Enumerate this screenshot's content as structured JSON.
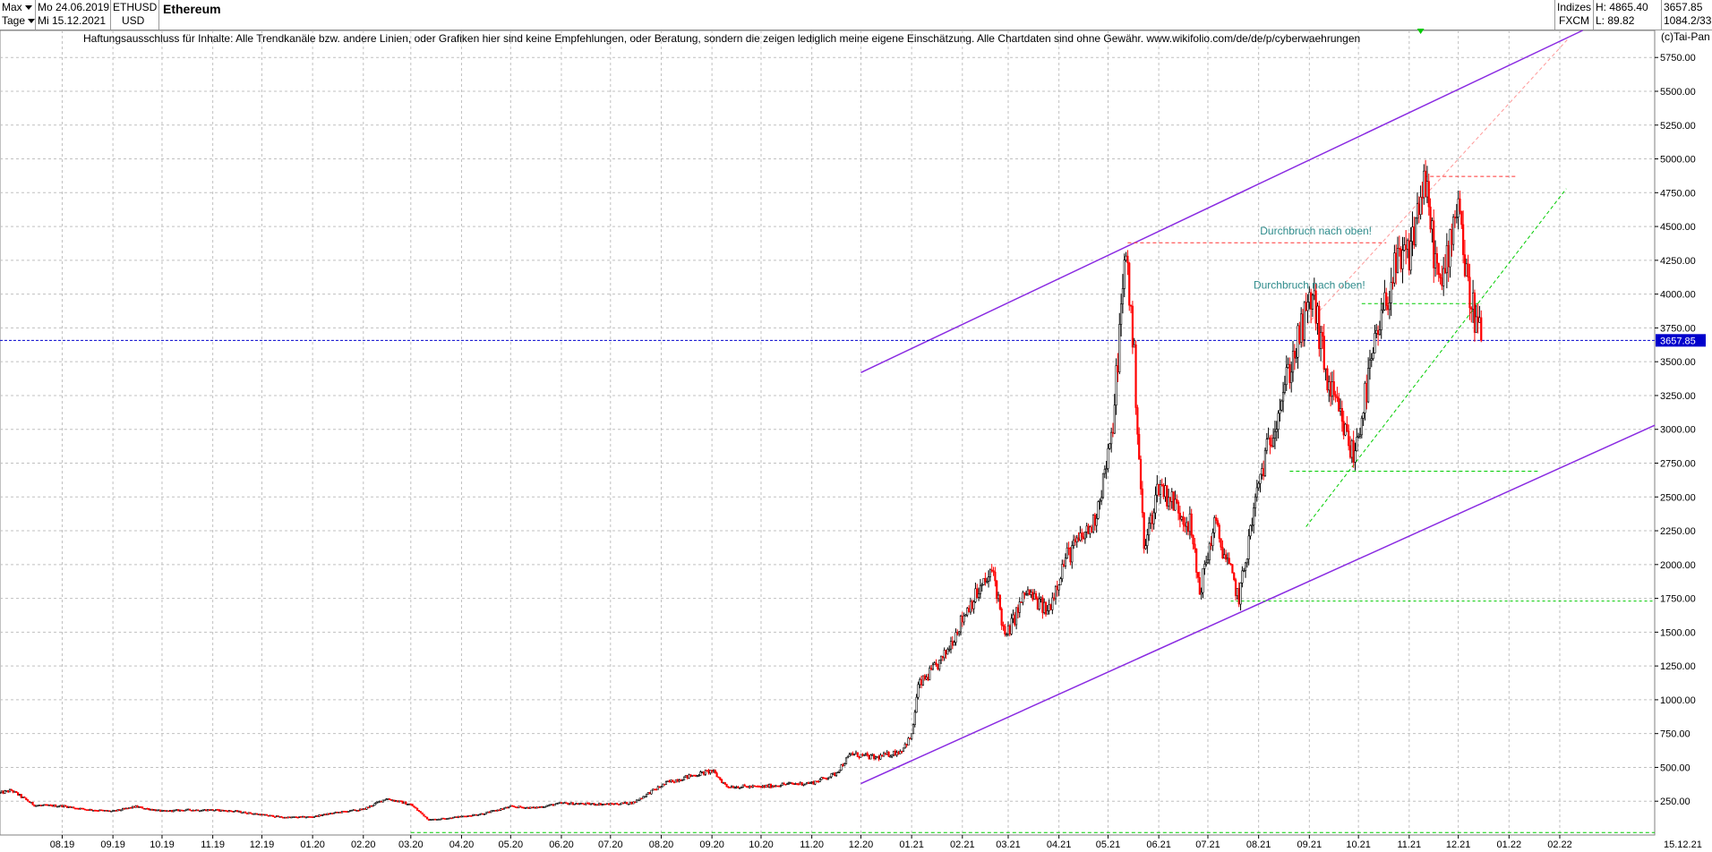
{
  "header": {
    "range_label": "Max",
    "interval_label": "Tage",
    "date_from": "Mo 24.06.2019",
    "date_to": "Mi 15.12.2021",
    "symbol": "ETHUSD",
    "currency": "USD",
    "title": "Ethereum",
    "source_top": "Indizes",
    "source_bottom": "FXCM",
    "high_label": "H: 4865.40",
    "low_label": "L: 89.82",
    "last_price": "3657.85",
    "change": "1084.2/33"
  },
  "disclaimer": "Haftungsausschluss für Inhalte: Alle Trendkanäle bzw. andere Linien, oder Grafiken hier sind keine Empfehlungen, oder Beratung, sondern die zeigen lediglich meine eigene Einschätzung. Alle Chartdaten sind ohne Gewähr.  www.wikifolio.com/de/de/p/cyberwaehrungen",
  "copyright": "(c)Tai-Pan",
  "colors": {
    "up": "#000000",
    "down": "#ff0000",
    "channel": "#8a2be2",
    "support": "#00cc00",
    "resistance": "#ff3333",
    "annotation": "#2e8b8b",
    "price_line": "#0000cc",
    "price_box": "#0000cc",
    "grid": "#c0c0c0"
  },
  "chart_data": {
    "type": "candlestick",
    "title": "Ethereum",
    "ylim": [
      0,
      5950
    ],
    "y_ticks": [
      250,
      500,
      750,
      1000,
      1250,
      1500,
      1750,
      2000,
      2250,
      2500,
      2750,
      3000,
      3250,
      3500,
      3750,
      4000,
      4250,
      4500,
      4750,
      5000,
      5250,
      5500,
      5750
    ],
    "y_tick_labels": [
      "250.00",
      "500.00",
      "750.00",
      "1000.00",
      "1250.00",
      "1500.00",
      "1750.00",
      "2000.00",
      "2250.00",
      "2500.00",
      "2750.00",
      "3000.00",
      "3250.00",
      "3500.00",
      "3750.00",
      "4000.00",
      "4250.00",
      "4500.00",
      "4750.00",
      "5000.00",
      "5250.00",
      "5500.00",
      "5750.00"
    ],
    "x_start": "2019-06-24",
    "x_end": "2022-03-31",
    "x_ticks": [
      {
        "date": "2019-08-01",
        "label": "08.19"
      },
      {
        "date": "2019-09-01",
        "label": "09.19"
      },
      {
        "date": "2019-10-01",
        "label": "10.19"
      },
      {
        "date": "2019-11-01",
        "label": "11.19"
      },
      {
        "date": "2019-12-01",
        "label": "12.19"
      },
      {
        "date": "2020-01-01",
        "label": "01.20"
      },
      {
        "date": "2020-02-01",
        "label": "02.20"
      },
      {
        "date": "2020-03-01",
        "label": "03.20"
      },
      {
        "date": "2020-04-01",
        "label": "04.20"
      },
      {
        "date": "2020-05-01",
        "label": "05.20"
      },
      {
        "date": "2020-06-01",
        "label": "06.20"
      },
      {
        "date": "2020-07-01",
        "label": "07.20"
      },
      {
        "date": "2020-08-01",
        "label": "08.20"
      },
      {
        "date": "2020-09-01",
        "label": "09.20"
      },
      {
        "date": "2020-10-01",
        "label": "10.20"
      },
      {
        "date": "2020-11-01",
        "label": "11.20"
      },
      {
        "date": "2020-12-01",
        "label": "12.20"
      },
      {
        "date": "2021-01-01",
        "label": "01.21"
      },
      {
        "date": "2021-02-01",
        "label": "02.21"
      },
      {
        "date": "2021-03-01",
        "label": "03.21"
      },
      {
        "date": "2021-04-01",
        "label": "04.21"
      },
      {
        "date": "2021-05-01",
        "label": "05.21"
      },
      {
        "date": "2021-06-01",
        "label": "06.21"
      },
      {
        "date": "2021-07-01",
        "label": "07.21"
      },
      {
        "date": "2021-08-01",
        "label": "08.21"
      },
      {
        "date": "2021-09-01",
        "label": "09.21"
      },
      {
        "date": "2021-10-01",
        "label": "10.21"
      },
      {
        "date": "2021-11-01",
        "label": "11.21"
      },
      {
        "date": "2021-12-01",
        "label": "12.21"
      },
      {
        "date": "2022-01-01",
        "label": "01.22"
      },
      {
        "date": "2022-02-01",
        "label": "02.22"
      }
    ],
    "x_end_label": "15.12.21",
    "price_path": [
      [
        "2019-06-24",
        310
      ],
      [
        "2019-07-01",
        330
      ],
      [
        "2019-07-15",
        220
      ],
      [
        "2019-08-01",
        215
      ],
      [
        "2019-08-15",
        190
      ],
      [
        "2019-09-01",
        175
      ],
      [
        "2019-09-15",
        210
      ],
      [
        "2019-10-01",
        175
      ],
      [
        "2019-10-15",
        185
      ],
      [
        "2019-11-01",
        185
      ],
      [
        "2019-11-15",
        175
      ],
      [
        "2019-12-01",
        150
      ],
      [
        "2019-12-15",
        130
      ],
      [
        "2020-01-01",
        135
      ],
      [
        "2020-01-15",
        165
      ],
      [
        "2020-02-01",
        190
      ],
      [
        "2020-02-15",
        270
      ],
      [
        "2020-03-01",
        225
      ],
      [
        "2020-03-12",
        112
      ],
      [
        "2020-03-31",
        135
      ],
      [
        "2020-04-15",
        160
      ],
      [
        "2020-05-01",
        210
      ],
      [
        "2020-05-15",
        200
      ],
      [
        "2020-06-01",
        235
      ],
      [
        "2020-06-15",
        230
      ],
      [
        "2020-07-01",
        228
      ],
      [
        "2020-07-15",
        240
      ],
      [
        "2020-07-25",
        315
      ],
      [
        "2020-08-05",
        390
      ],
      [
        "2020-08-15",
        425
      ],
      [
        "2020-09-01",
        475
      ],
      [
        "2020-09-10",
        360
      ],
      [
        "2020-10-01",
        355
      ],
      [
        "2020-10-15",
        375
      ],
      [
        "2020-11-01",
        385
      ],
      [
        "2020-11-15",
        450
      ],
      [
        "2020-11-25",
        600
      ],
      [
        "2020-12-10",
        570
      ],
      [
        "2020-12-25",
        620
      ],
      [
        "2021-01-01",
        730
      ],
      [
        "2021-01-05",
        1100
      ],
      [
        "2021-01-20",
        1300
      ],
      [
        "2021-02-05",
        1700
      ],
      [
        "2021-02-20",
        1950
      ],
      [
        "2021-02-27",
        1450
      ],
      [
        "2021-03-12",
        1800
      ],
      [
        "2021-03-25",
        1650
      ],
      [
        "2021-04-05",
        2050
      ],
      [
        "2021-04-22",
        2300
      ],
      [
        "2021-05-03",
        2900
      ],
      [
        "2021-05-12",
        4350
      ],
      [
        "2021-05-17",
        3500
      ],
      [
        "2021-05-23",
        2100
      ],
      [
        "2021-06-01",
        2600
      ],
      [
        "2021-06-20",
        2300
      ],
      [
        "2021-06-26",
        1800
      ],
      [
        "2021-07-05",
        2300
      ],
      [
        "2021-07-20",
        1750
      ],
      [
        "2021-08-01",
        2600
      ],
      [
        "2021-08-15",
        3250
      ],
      [
        "2021-09-03",
        4000
      ],
      [
        "2021-09-12",
        3350
      ],
      [
        "2021-09-28",
        2800
      ],
      [
        "2021-10-10",
        3550
      ],
      [
        "2021-10-22",
        4150
      ],
      [
        "2021-11-01",
        4300
      ],
      [
        "2021-11-10",
        4850
      ],
      [
        "2021-11-20",
        4000
      ],
      [
        "2021-12-01",
        4750
      ],
      [
        "2021-12-06",
        4100
      ],
      [
        "2021-12-15",
        3657.85
      ]
    ],
    "channel_upper": [
      [
        "2020-12-01",
        3420
      ],
      [
        "2022-02-15",
        5950
      ]
    ],
    "channel_lower": [
      [
        "2020-12-01",
        380
      ],
      [
        "2022-03-31",
        3030
      ]
    ],
    "support_dashed": [
      {
        "from": "2021-08-20",
        "to": "2022-01-20",
        "y": 2690
      },
      {
        "from": "2021-10-03",
        "to": "2021-12-15",
        "y": 3930
      },
      {
        "from": "2020-03-01",
        "to": "2022-03-31",
        "y": 18
      }
    ],
    "support_long": {
      "from": "2021-07-15",
      "to": "2022-03-31",
      "y": 1730
    },
    "support_trend": [
      [
        "2021-08-30",
        2280
      ],
      [
        "2022-02-05",
        4780
      ]
    ],
    "resistance_dashed": [
      {
        "from": "2021-05-13",
        "to": "2021-10-18",
        "y": 4380
      },
      {
        "from": "2021-11-10",
        "to": "2022-01-05",
        "y": 4870
      }
    ],
    "resistance_trend": [
      [
        "2021-08-28",
        3740
      ],
      [
        "2022-02-07",
        5900
      ]
    ],
    "annotations": [
      {
        "text": "Durchbruch nach oben!",
        "date": "2021-09-05",
        "y": 4440
      },
      {
        "text": "Durchbruch nach oben!",
        "date": "2021-09-01",
        "y": 4040
      }
    ],
    "current_price": 3657.85,
    "current_price_label": "3657.85"
  }
}
